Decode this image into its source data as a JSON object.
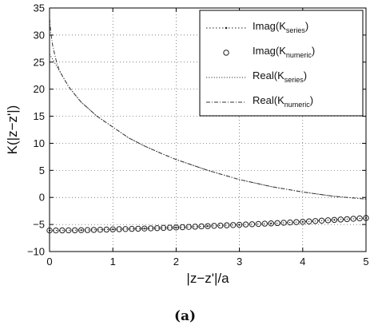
{
  "caption": "(a)",
  "chart_data": {
    "type": "line",
    "xlabel": "|z−z'|/a",
    "ylabel": "K(|z−z'|)",
    "xlim": [
      0,
      5
    ],
    "ylim": [
      -10,
      35
    ],
    "x_ticks": [
      "0",
      "1",
      "2",
      "3",
      "4",
      "5"
    ],
    "y_ticks": [
      "−10",
      "−5",
      "0",
      "5",
      "10",
      "15",
      "20",
      "25",
      "30",
      "35"
    ],
    "grid": true,
    "legend_position": "top-right",
    "series": [
      {
        "name": "Imag(K_series)",
        "legend_label": {
          "main": "Imag(K",
          "sub": "series",
          "tail": ")"
        },
        "style": "dotted-with-dots",
        "color": "#222222",
        "x": [
          0,
          0.5,
          1,
          1.5,
          2,
          2.5,
          3,
          3.5,
          4,
          4.5,
          5
        ],
        "y": [
          -6.1,
          -6.05,
          -5.9,
          -5.75,
          -5.55,
          -5.3,
          -5.05,
          -4.8,
          -4.5,
          -4.15,
          -3.8
        ]
      },
      {
        "name": "Imag(K_numeric)",
        "legend_label": {
          "main": "Imag(K",
          "sub": "numeric",
          "tail": ")"
        },
        "style": "circles",
        "color": "#222222",
        "x": [
          0,
          0.1,
          0.2,
          0.3,
          0.4,
          0.5,
          0.6,
          0.7,
          0.8,
          0.9,
          1.0,
          1.1,
          1.2,
          1.3,
          1.4,
          1.5,
          1.6,
          1.7,
          1.8,
          1.9,
          2.0,
          2.1,
          2.2,
          2.3,
          2.4,
          2.5,
          2.6,
          2.7,
          2.8,
          2.9,
          3.0,
          3.1,
          3.2,
          3.3,
          3.4,
          3.5,
          3.6,
          3.7,
          3.8,
          3.9,
          4.0,
          4.1,
          4.2,
          4.3,
          4.4,
          4.5,
          4.6,
          4.7,
          4.8,
          4.9,
          5.0
        ],
        "y": [
          -6.1,
          -6.1,
          -6.09,
          -6.08,
          -6.07,
          -6.05,
          -6.03,
          -6.0,
          -5.97,
          -5.94,
          -5.9,
          -5.87,
          -5.84,
          -5.81,
          -5.78,
          -5.75,
          -5.71,
          -5.67,
          -5.63,
          -5.59,
          -5.55,
          -5.5,
          -5.45,
          -5.4,
          -5.35,
          -5.3,
          -5.25,
          -5.2,
          -5.15,
          -5.1,
          -5.05,
          -5.0,
          -4.95,
          -4.9,
          -4.85,
          -4.8,
          -4.74,
          -4.68,
          -4.62,
          -4.56,
          -4.5,
          -4.43,
          -4.36,
          -4.29,
          -4.22,
          -4.15,
          -4.08,
          -4.01,
          -3.94,
          -3.87,
          -3.8
        ]
      },
      {
        "name": "Real(K_series)",
        "legend_label": {
          "main": "Real(K",
          "sub": "series",
          "tail": ")"
        },
        "style": "dotted",
        "color": "#333333",
        "x": [
          0,
          0.05,
          0.1,
          0.15,
          0.2,
          0.3,
          0.4,
          0.5,
          0.75,
          1,
          1.25,
          1.5,
          1.75,
          2,
          2.5,
          3,
          3.5,
          4,
          4.5,
          5
        ],
        "y": [
          26.5,
          25.5,
          24.5,
          23.5,
          22.5,
          20.5,
          19.0,
          17.6,
          15.0,
          13.0,
          11.0,
          9.5,
          8.2,
          7.0,
          5.0,
          3.3,
          2.0,
          1.0,
          0.2,
          -0.3
        ]
      },
      {
        "name": "Real(K_numeric)",
        "legend_label": {
          "main": "Real(K",
          "sub": "numeric",
          "tail": ")"
        },
        "style": "dashdot",
        "color": "#333333",
        "x": [
          0,
          0.02,
          0.05,
          0.1,
          0.15,
          0.2,
          0.3,
          0.4,
          0.5,
          0.75,
          1,
          1.25,
          1.5,
          1.75,
          2,
          2.5,
          3,
          3.5,
          4,
          4.5,
          5
        ],
        "y": [
          33,
          30.5,
          28.0,
          25.5,
          23.6,
          22.5,
          20.5,
          19.0,
          17.6,
          15.0,
          13.0,
          11.0,
          9.5,
          8.2,
          7.0,
          5.0,
          3.3,
          2.0,
          1.0,
          0.2,
          -0.3
        ]
      }
    ]
  }
}
